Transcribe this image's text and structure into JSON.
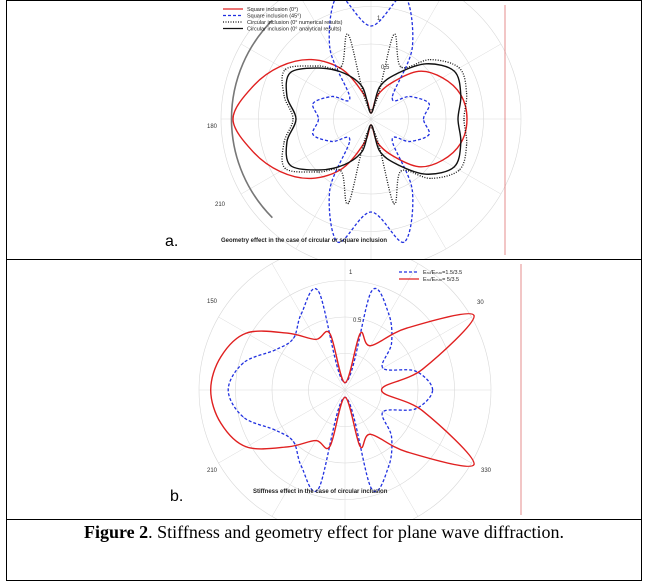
{
  "figure": {
    "caption_label": "Figure 2",
    "caption_text": ". Stiffness and geometry effect for plane wave diffraction."
  },
  "chart_data": [
    {
      "type": "polar-line",
      "panel_letter": "a.",
      "subtitle": "Geometry effect in the case of circular or square  inclusion",
      "tick_labels": [
        "1",
        "0.5",
        "180",
        "210"
      ],
      "legend": [
        {
          "name": "Square inclusion (0°)",
          "color": "#e02020",
          "dash": "solid"
        },
        {
          "name": "Square inclusion (45°)",
          "color": "#2030e0",
          "dash": "dashed"
        },
        {
          "name": "Circular inclusion (0° numerical results)",
          "color": "#111111",
          "dash": "dotted"
        },
        {
          "name": "Circular inclusion (0° analytical results)",
          "color": "#111111",
          "dash": "solid"
        }
      ],
      "theta_deg": [
        0,
        15,
        30,
        45,
        60,
        75,
        90,
        105,
        120,
        135,
        150,
        165,
        180,
        195,
        210,
        225,
        240,
        255,
        270,
        285,
        300,
        315,
        330,
        345
      ],
      "series": [
        {
          "name": "Square inclusion (0°)",
          "r": [
            0.64,
            0.62,
            0.55,
            0.45,
            0.28,
            0.16,
            0.04,
            0.16,
            0.38,
            0.56,
            0.7,
            0.82,
            0.92,
            0.82,
            0.7,
            0.56,
            0.38,
            0.16,
            0.04,
            0.16,
            0.28,
            0.45,
            0.55,
            0.62
          ]
        },
        {
          "name": "Square inclusion (45°)",
          "r": [
            0.35,
            0.4,
            0.3,
            0.2,
            0.55,
            0.85,
            0.62,
            0.85,
            0.55,
            0.2,
            0.3,
            0.4,
            0.35,
            0.4,
            0.3,
            0.2,
            0.55,
            0.85,
            0.62,
            0.85,
            0.55,
            0.2,
            0.3,
            0.4
          ]
        },
        {
          "name": "Circular inclusion (0° numerical results)",
          "r": [
            0.62,
            0.66,
            0.68,
            0.56,
            0.4,
            0.58,
            0.06,
            0.58,
            0.4,
            0.5,
            0.66,
            0.6,
            0.52,
            0.6,
            0.66,
            0.5,
            0.4,
            0.58,
            0.06,
            0.58,
            0.4,
            0.56,
            0.68,
            0.66
          ]
        },
        {
          "name": "Circular inclusion (0° analytical results)",
          "r": [
            0.58,
            0.62,
            0.64,
            0.52,
            0.35,
            0.22,
            0.04,
            0.22,
            0.35,
            0.48,
            0.62,
            0.58,
            0.5,
            0.58,
            0.62,
            0.48,
            0.35,
            0.22,
            0.04,
            0.22,
            0.35,
            0.52,
            0.64,
            0.62
          ]
        }
      ]
    },
    {
      "type": "polar-line",
      "panel_letter": "b.",
      "subtitle": "Stiffness effect in the case of circular inclusion",
      "tick_labels": [
        "1",
        "0.5",
        "150",
        "30",
        "210",
        "330"
      ],
      "legend": [
        {
          "name": "Eₘ/Eₘₘ=1.5/3.5",
          "color": "#2030e0",
          "dash": "dashed"
        },
        {
          "name": "Eₘ/Eₘₘ= 5/3.5",
          "color": "#e02020",
          "dash": "solid"
        }
      ],
      "theta_deg": [
        0,
        15,
        30,
        45,
        60,
        75,
        90,
        105,
        120,
        135,
        150,
        165,
        180,
        195,
        210,
        225,
        240,
        255,
        270,
        285,
        300,
        315,
        330,
        345
      ],
      "series": [
        {
          "name": "Eₘ/Eₘₘ=1.5/3.5",
          "r": [
            0.6,
            0.5,
            0.3,
            0.45,
            0.6,
            0.7,
            0.05,
            0.7,
            0.6,
            0.5,
            0.55,
            0.72,
            0.8,
            0.72,
            0.55,
            0.5,
            0.6,
            0.7,
            0.05,
            0.7,
            0.6,
            0.45,
            0.3,
            0.5
          ]
        },
        {
          "name": "Eₘ/Eₘₘ= 5/3.5",
          "r": [
            0.25,
            0.55,
            1.02,
            0.6,
            0.35,
            0.4,
            0.05,
            0.4,
            0.4,
            0.55,
            0.78,
            0.88,
            0.92,
            0.88,
            0.78,
            0.55,
            0.4,
            0.4,
            0.05,
            0.4,
            0.35,
            0.6,
            1.02,
            0.55
          ]
        }
      ]
    }
  ]
}
